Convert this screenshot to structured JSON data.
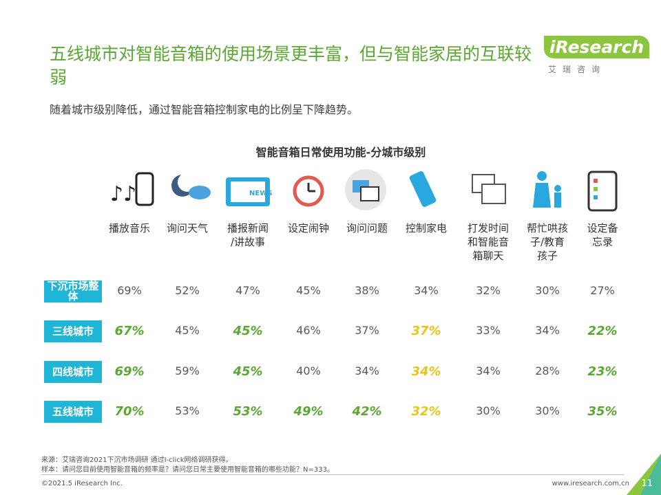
{
  "header": {
    "title": "五线城市对智能音箱的使用场景更丰富，但与智能家居的互联较弱",
    "subtitle": "随着城市级别降低，通过智能音箱控制家电的比例呈下降趋势。",
    "logo": "iResearch",
    "logo_sub": "艾瑞咨询"
  },
  "table": {
    "title": "智能音箱日常使用功能-分城市级别",
    "columns": [
      [
        "播放音乐"
      ],
      [
        "询问天气"
      ],
      [
        "播报新闻",
        "/讲故事"
      ],
      [
        "设定闹钟"
      ],
      [
        "询问问题"
      ],
      [
        "控制家电"
      ],
      [
        "打发时间",
        "和智能音",
        "箱聊天"
      ],
      [
        "帮忙哄孩",
        "子/教育",
        "孩子"
      ],
      [
        "设定备",
        "忘录"
      ]
    ],
    "rows": [
      {
        "label": "下沉市场整体",
        "values": [
          "69%",
          "52%",
          "47%",
          "45%",
          "38%",
          "34%",
          "32%",
          "30%",
          "27%"
        ],
        "cell_colors": [
          "#595959",
          "#595959",
          "#595959",
          "#595959",
          "#595959",
          "#595959",
          "#595959",
          "#595959",
          "#595959"
        ]
      },
      {
        "label": "三线城市",
        "values": [
          "67%",
          "45%",
          "45%",
          "46%",
          "37%",
          "37%",
          "33%",
          "34%",
          "22%"
        ],
        "cell_colors": [
          "#5aa832",
          "#595959",
          "#5aa832",
          "#595959",
          "#595959",
          "#e8c51a",
          "#595959",
          "#595959",
          "#5aa832"
        ]
      },
      {
        "label": "四线城市",
        "values": [
          "69%",
          "59%",
          "45%",
          "40%",
          "34%",
          "34%",
          "34%",
          "28%",
          "23%"
        ],
        "cell_colors": [
          "#5aa832",
          "#595959",
          "#5aa832",
          "#595959",
          "#595959",
          "#e8c51a",
          "#595959",
          "#595959",
          "#5aa832"
        ]
      },
      {
        "label": "五线城市",
        "values": [
          "70%",
          "53%",
          "53%",
          "49%",
          "42%",
          "32%",
          "30%",
          "30%",
          "35%"
        ],
        "cell_colors": [
          "#5aa832",
          "#595959",
          "#5aa832",
          "#5aa832",
          "#5aa832",
          "#e8c51a",
          "#595959",
          "#595959",
          "#5aa832"
        ]
      }
    ],
    "plain_color": "#595959"
  },
  "footer": {
    "source": "来源：艾瑞咨询2021下沉市场调研 通过I-click网络调研获得。",
    "sample": "样本：请问您目前使用智能音箱的频率是？请问您日常主要使用智能音箱的哪些功能？N=333。",
    "copyright": "©2021.5 iResearch Inc.",
    "website": "www.iresearch.com.cn",
    "page": "11"
  }
}
